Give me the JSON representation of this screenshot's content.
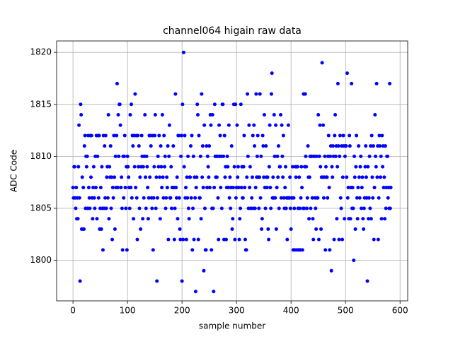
{
  "chart_data": {
    "type": "scatter",
    "title": "channel064 higain raw data",
    "x_label": "sample number",
    "y_label": "ADC Code",
    "color": "#0000ff",
    "grid": true,
    "xlim": [
      -30,
      614
    ],
    "ylim": [
      1796.1,
      1821.1
    ],
    "xticks": [
      0,
      100,
      200,
      300,
      400,
      500,
      600
    ],
    "yticks": [
      1800,
      1805,
      1810,
      1815,
      1820
    ],
    "x": [
      0,
      1,
      2,
      3,
      4,
      5,
      6,
      7,
      8,
      9,
      10,
      11,
      12,
      13,
      14,
      15,
      16,
      17,
      18,
      19,
      20,
      21,
      22,
      23,
      24,
      25,
      26,
      27,
      28,
      29,
      30,
      31,
      32,
      33,
      34,
      35,
      36,
      37,
      38,
      39,
      40,
      41,
      42,
      43,
      44,
      45,
      46,
      47,
      48,
      49,
      50,
      51,
      52,
      53,
      54,
      55,
      56,
      57,
      58,
      59,
      60,
      61,
      62,
      63,
      64,
      65,
      66,
      67,
      68,
      69,
      70,
      71,
      72,
      73,
      74,
      75,
      76,
      77,
      78,
      79,
      80,
      81,
      82,
      83,
      84,
      85,
      86,
      87,
      88,
      89,
      90,
      91,
      92,
      93,
      94,
      95,
      96,
      97,
      98,
      99,
      100,
      101,
      102,
      103,
      104,
      105,
      106,
      107,
      108,
      109,
      110,
      111,
      112,
      113,
      114,
      115,
      116,
      117,
      118,
      119,
      120,
      121,
      122,
      123,
      124,
      125,
      126,
      127,
      128,
      129,
      130,
      131,
      132,
      133,
      134,
      135,
      136,
      137,
      138,
      139,
      140,
      141,
      142,
      143,
      144,
      145,
      146,
      147,
      148,
      149,
      150,
      151,
      152,
      153,
      154,
      155,
      156,
      157,
      158,
      159,
      160,
      161,
      162,
      163,
      164,
      165,
      166,
      167,
      168,
      169,
      170,
      171,
      172,
      173,
      174,
      175,
      176,
      177,
      178,
      179,
      180,
      181,
      182,
      183,
      184,
      185,
      186,
      187,
      188,
      189,
      190,
      191,
      192,
      193,
      194,
      195,
      196,
      197,
      198,
      199,
      200,
      201,
      202,
      203,
      204,
      205,
      206,
      207,
      208,
      209,
      210,
      211,
      212,
      213,
      214,
      215,
      216,
      217,
      218,
      219,
      220,
      221,
      222,
      223,
      224,
      225,
      226,
      227,
      228,
      229,
      230,
      231,
      232,
      233,
      234,
      235,
      236,
      237,
      238,
      239,
      240,
      241,
      242,
      243,
      244,
      245,
      246,
      247,
      248,
      249,
      250,
      251,
      252,
      253,
      254,
      255,
      256,
      257,
      258,
      259,
      260,
      261,
      262,
      263,
      264,
      265,
      266,
      267,
      268,
      269,
      270,
      271,
      272,
      273,
      274,
      275,
      276,
      277,
      278,
      279,
      280,
      281,
      282,
      283,
      284,
      285,
      286,
      287,
      288,
      289,
      290,
      291,
      292,
      293,
      294,
      295,
      296,
      297,
      298,
      299,
      300,
      301,
      302,
      303,
      304,
      305,
      306,
      307,
      308,
      309,
      310,
      311,
      312,
      313,
      314,
      315,
      316,
      317,
      318,
      319,
      320,
      321,
      322,
      323,
      324,
      325,
      326,
      327,
      328,
      329,
      330,
      331,
      332,
      333,
      334,
      335,
      336,
      337,
      338,
      339,
      340,
      341,
      342,
      343,
      344,
      345,
      346,
      347,
      348,
      349,
      350,
      351,
      352,
      353,
      354,
      355,
      356,
      357,
      358,
      359,
      360,
      361,
      362,
      363,
      364,
      365,
      366,
      367,
      368,
      369,
      370,
      371,
      372,
      373,
      374,
      375,
      376,
      377,
      378,
      379,
      380,
      381,
      382,
      383,
      384,
      385,
      386,
      387,
      388,
      389,
      390,
      391,
      392,
      393,
      394,
      395,
      396,
      397,
      398,
      399,
      400,
      401,
      402,
      403,
      404,
      405,
      406,
      407,
      408,
      409,
      410,
      411,
      412,
      413,
      414,
      415,
      416,
      417,
      418,
      419,
      420,
      421,
      422,
      423,
      424,
      425,
      426,
      427,
      428,
      429,
      430,
      431,
      432,
      433,
      434,
      435,
      436,
      437,
      438,
      439,
      440,
      441,
      442,
      443,
      444,
      445,
      446,
      447,
      448,
      449,
      450,
      451,
      452,
      453,
      454,
      455,
      456,
      457,
      458,
      459,
      460,
      461,
      462,
      463,
      464,
      465,
      466,
      467,
      468,
      469,
      470,
      471,
      472,
      473,
      474,
      475,
      476,
      477,
      478,
      479,
      480,
      481,
      482,
      483,
      484,
      485,
      486,
      487,
      488,
      489,
      490,
      491,
      492,
      493,
      494,
      495,
      496,
      497,
      498,
      499,
      500,
      501,
      502,
      503,
      504,
      505,
      506,
      507,
      508,
      509,
      510,
      511,
      512,
      513,
      514,
      515,
      516,
      517,
      518,
      519,
      520,
      521,
      522,
      523,
      524,
      525,
      526,
      527,
      528,
      529,
      530,
      531,
      532,
      533,
      534,
      535,
      536,
      537,
      538,
      539,
      540,
      541,
      542,
      543,
      544,
      545,
      546,
      547,
      548,
      549,
      550,
      551,
      552,
      553,
      554,
      555,
      556,
      557,
      558,
      559,
      560,
      561,
      562,
      563,
      564,
      565,
      566,
      567,
      568,
      569,
      570,
      571,
      572,
      573,
      574,
      575,
      576,
      577,
      578,
      579,
      580,
      581,
      582,
      583
    ],
    "values": [
      1807,
      1806,
      1809,
      1809,
      1806,
      1805,
      1807,
      1804,
      1806,
      1804,
      1809,
      1813,
      1806,
      1798,
      1815,
      1814,
      1803,
      1808,
      1803,
      1807,
      1803,
      1811,
      1812,
      1805,
      1810,
      1809,
      1810,
      1805,
      1812,
      1807,
      1806,
      1805,
      1812,
      1808,
      1812,
      1806,
      1804,
      1807,
      1809,
      1806,
      1805,
      1810,
      1807,
      1812,
      1804,
      1810,
      1812,
      1806,
      1812,
      1803,
      1805,
      1807,
      1803,
      1809,
      1805,
      1801,
      1812,
      1805,
      1811,
      1806,
      1812,
      1805,
      1808,
      1809,
      1806,
      1814,
      1804,
      1809,
      1808,
      1811,
      1805,
      1808,
      1802,
      1807,
      1806,
      1812,
      1808,
      1803,
      1810,
      1807,
      1812,
      1817,
      1807,
      1814,
      1810,
      1815,
      1815,
      1813,
      1807,
      1808,
      1805,
      1801,
      1810,
      1806,
      1810,
      1812,
      1807,
      1805,
      1809,
      1801,
      1810,
      1809,
      1808,
      1807,
      1805,
      1814,
      1807,
      1815,
      1806,
      1812,
      1811,
      1804,
      1812,
      1809,
      1816,
      1807,
      1812,
      1806,
      1802,
      1812,
      1809,
      1811,
      1805,
      1808,
      1803,
      1809,
      1812,
      1810,
      1804,
      1809,
      1806,
      1810,
      1814,
      1808,
      1805,
      1810,
      1809,
      1807,
      1804,
      1806,
      1812,
      1808,
      1812,
      1811,
      1806,
      1805,
      1812,
      1801,
      1806,
      1809,
      1812,
      1814,
      1805,
      1808,
      1798,
      1806,
      1810,
      1809,
      1812,
      1808,
      1804,
      1811,
      1809,
      1807,
      1814,
      1808,
      1806,
      1812,
      1809,
      1810,
      1805,
      1806,
      1808,
      1807,
      1811,
      1802,
      1810,
      1813,
      1806,
      1806,
      1809,
      1805,
      1807,
      1807,
      1811,
      1807,
      1802,
      1805,
      1816,
      1807,
      1806,
      1808,
      1804,
      1812,
      1812,
      1806,
      1803,
      1802,
      1810,
      1812,
      1798,
      1815,
      1802,
      1820,
      1809,
      1812,
      1806,
      1807,
      1802,
      1808,
      1806,
      1810,
      1805,
      1804,
      1808,
      1808,
      1811,
      1806,
      1812,
      1801,
      1805,
      1810,
      1802,
      1808,
      1806,
      1797,
      1807,
      1808,
      1815,
      1814,
      1802,
      1812,
      1806,
      1806,
      1810,
      1804,
      1816,
      1808,
      1811,
      1807,
      1799,
      1813,
      1805,
      1801,
      1801,
      1811,
      1807,
      1810,
      1809,
      1808,
      1811,
      1807,
      1814,
      1813,
      1801,
      1805,
      1814,
      1805,
      1797,
      1807,
      1815,
      1810,
      1808,
      1810,
      1808,
      1810,
      1806,
      1802,
      1813,
      1810,
      1812,
      1807,
      1810,
      1805,
      1815,
      1815,
      1810,
      1802,
      1812,
      1808,
      1809,
      1802,
      1807,
      1810,
      1809,
      1807,
      1813,
      1806,
      1808,
      1805,
      1807,
      1811,
      1803,
      1804,
      1807,
      1815,
      1809,
      1802,
      1815,
      1806,
      1807,
      1813,
      1808,
      1809,
      1807,
      1802,
      1804,
      1805,
      1815,
      1807,
      1809,
      1806,
      1806,
      1809,
      1812,
      1807,
      1802,
      1801,
      1801,
      1808,
      1816,
      1810,
      1805,
      1813,
      1807,
      1809,
      1805,
      1805,
      1806,
      1808,
      1812,
      1805,
      1813,
      1811,
      1805,
      1807,
      1816,
      1808,
      1810,
      1812,
      1808,
      1805,
      1808,
      1816,
      1806,
      1810,
      1803,
      1804,
      1812,
      1811,
      1808,
      1814,
      1807,
      1805,
      1811,
      1808,
      1807,
      1808,
      1803,
      1802,
      1809,
      1813,
      1807,
      1805,
      1816,
      1818,
      1806,
      1808,
      1806,
      1814,
      1810,
      1806,
      1813,
      1803,
      1807,
      1810,
      1808,
      1811,
      1805,
      1809,
      1809,
      1814,
      1806,
      1813,
      1810,
      1808,
      1812,
      1806,
      1805,
      1807,
      1809,
      1805,
      1806,
      1802,
      1806,
      1813,
      1806,
      1806,
      1808,
      1805,
      1803,
      1806,
      1806,
      1809,
      1801,
      1806,
      1805,
      1801,
      1809,
      1808,
      1809,
      1801,
      1809,
      1805,
      1801,
      1808,
      1805,
      1801,
      1806,
      1809,
      1807,
      1801,
      1805,
      1816,
      1805,
      1809,
      1816,
      1810,
      1809,
      1805,
      1806,
      1811,
      1808,
      1804,
      1808,
      1810,
      1805,
      1810,
      1810,
      1806,
      1804,
      1802,
      1810,
      1810,
      1806,
      1805,
      1803,
      1810,
      1806,
      1806,
      1814,
      1802,
      1810,
      1813,
      1809,
      1803,
      1808,
      1819,
      1808,
      1813,
      1806,
      1808,
      1810,
      1801,
      1809,
      1808,
      1808,
      1806,
      1810,
      1812,
      1807,
      1801,
      1810,
      1811,
      1799,
      1809,
      1808,
      1811,
      1810,
      1802,
      1812,
      1814,
      1810,
      1811,
      1804,
      1809,
      1817,
      1811,
      1802,
      1810,
      1812,
      1806,
      1805,
      1811,
      1802,
      1808,
      1812,
      1811,
      1804,
      1810,
      1811,
      1811,
      1808,
      1818,
      1806,
      1807,
      1804,
      1812,
      1811,
      1804,
      1807,
      1817,
      1805,
      1807,
      1805,
      1800,
      1810,
      1808,
      1803,
      1809,
      1812,
      1806,
      1804,
      1807,
      1811,
      1808,
      1806,
      1809,
      1810,
      1805,
      1807,
      1808,
      1804,
      1803,
      1805,
      1806,
      1809,
      1811,
      1808,
      1806,
      1798,
      1809,
      1804,
      1806,
      1810,
      1805,
      1811,
      1804,
      1812,
      1808,
      1806,
      1811,
      1802,
      1807,
      1814,
      1810,
      1809,
      1817,
      1808,
      1811,
      1802,
      1806,
      1812,
      1811,
      1808,
      1810,
      1804,
      1812,
      1809,
      1811,
      1807,
      1808,
      1804,
      1811,
      1805,
      1807,
      1810,
      1810,
      1806,
      1807,
      1805,
      1817,
      1805,
      1807
    ]
  }
}
